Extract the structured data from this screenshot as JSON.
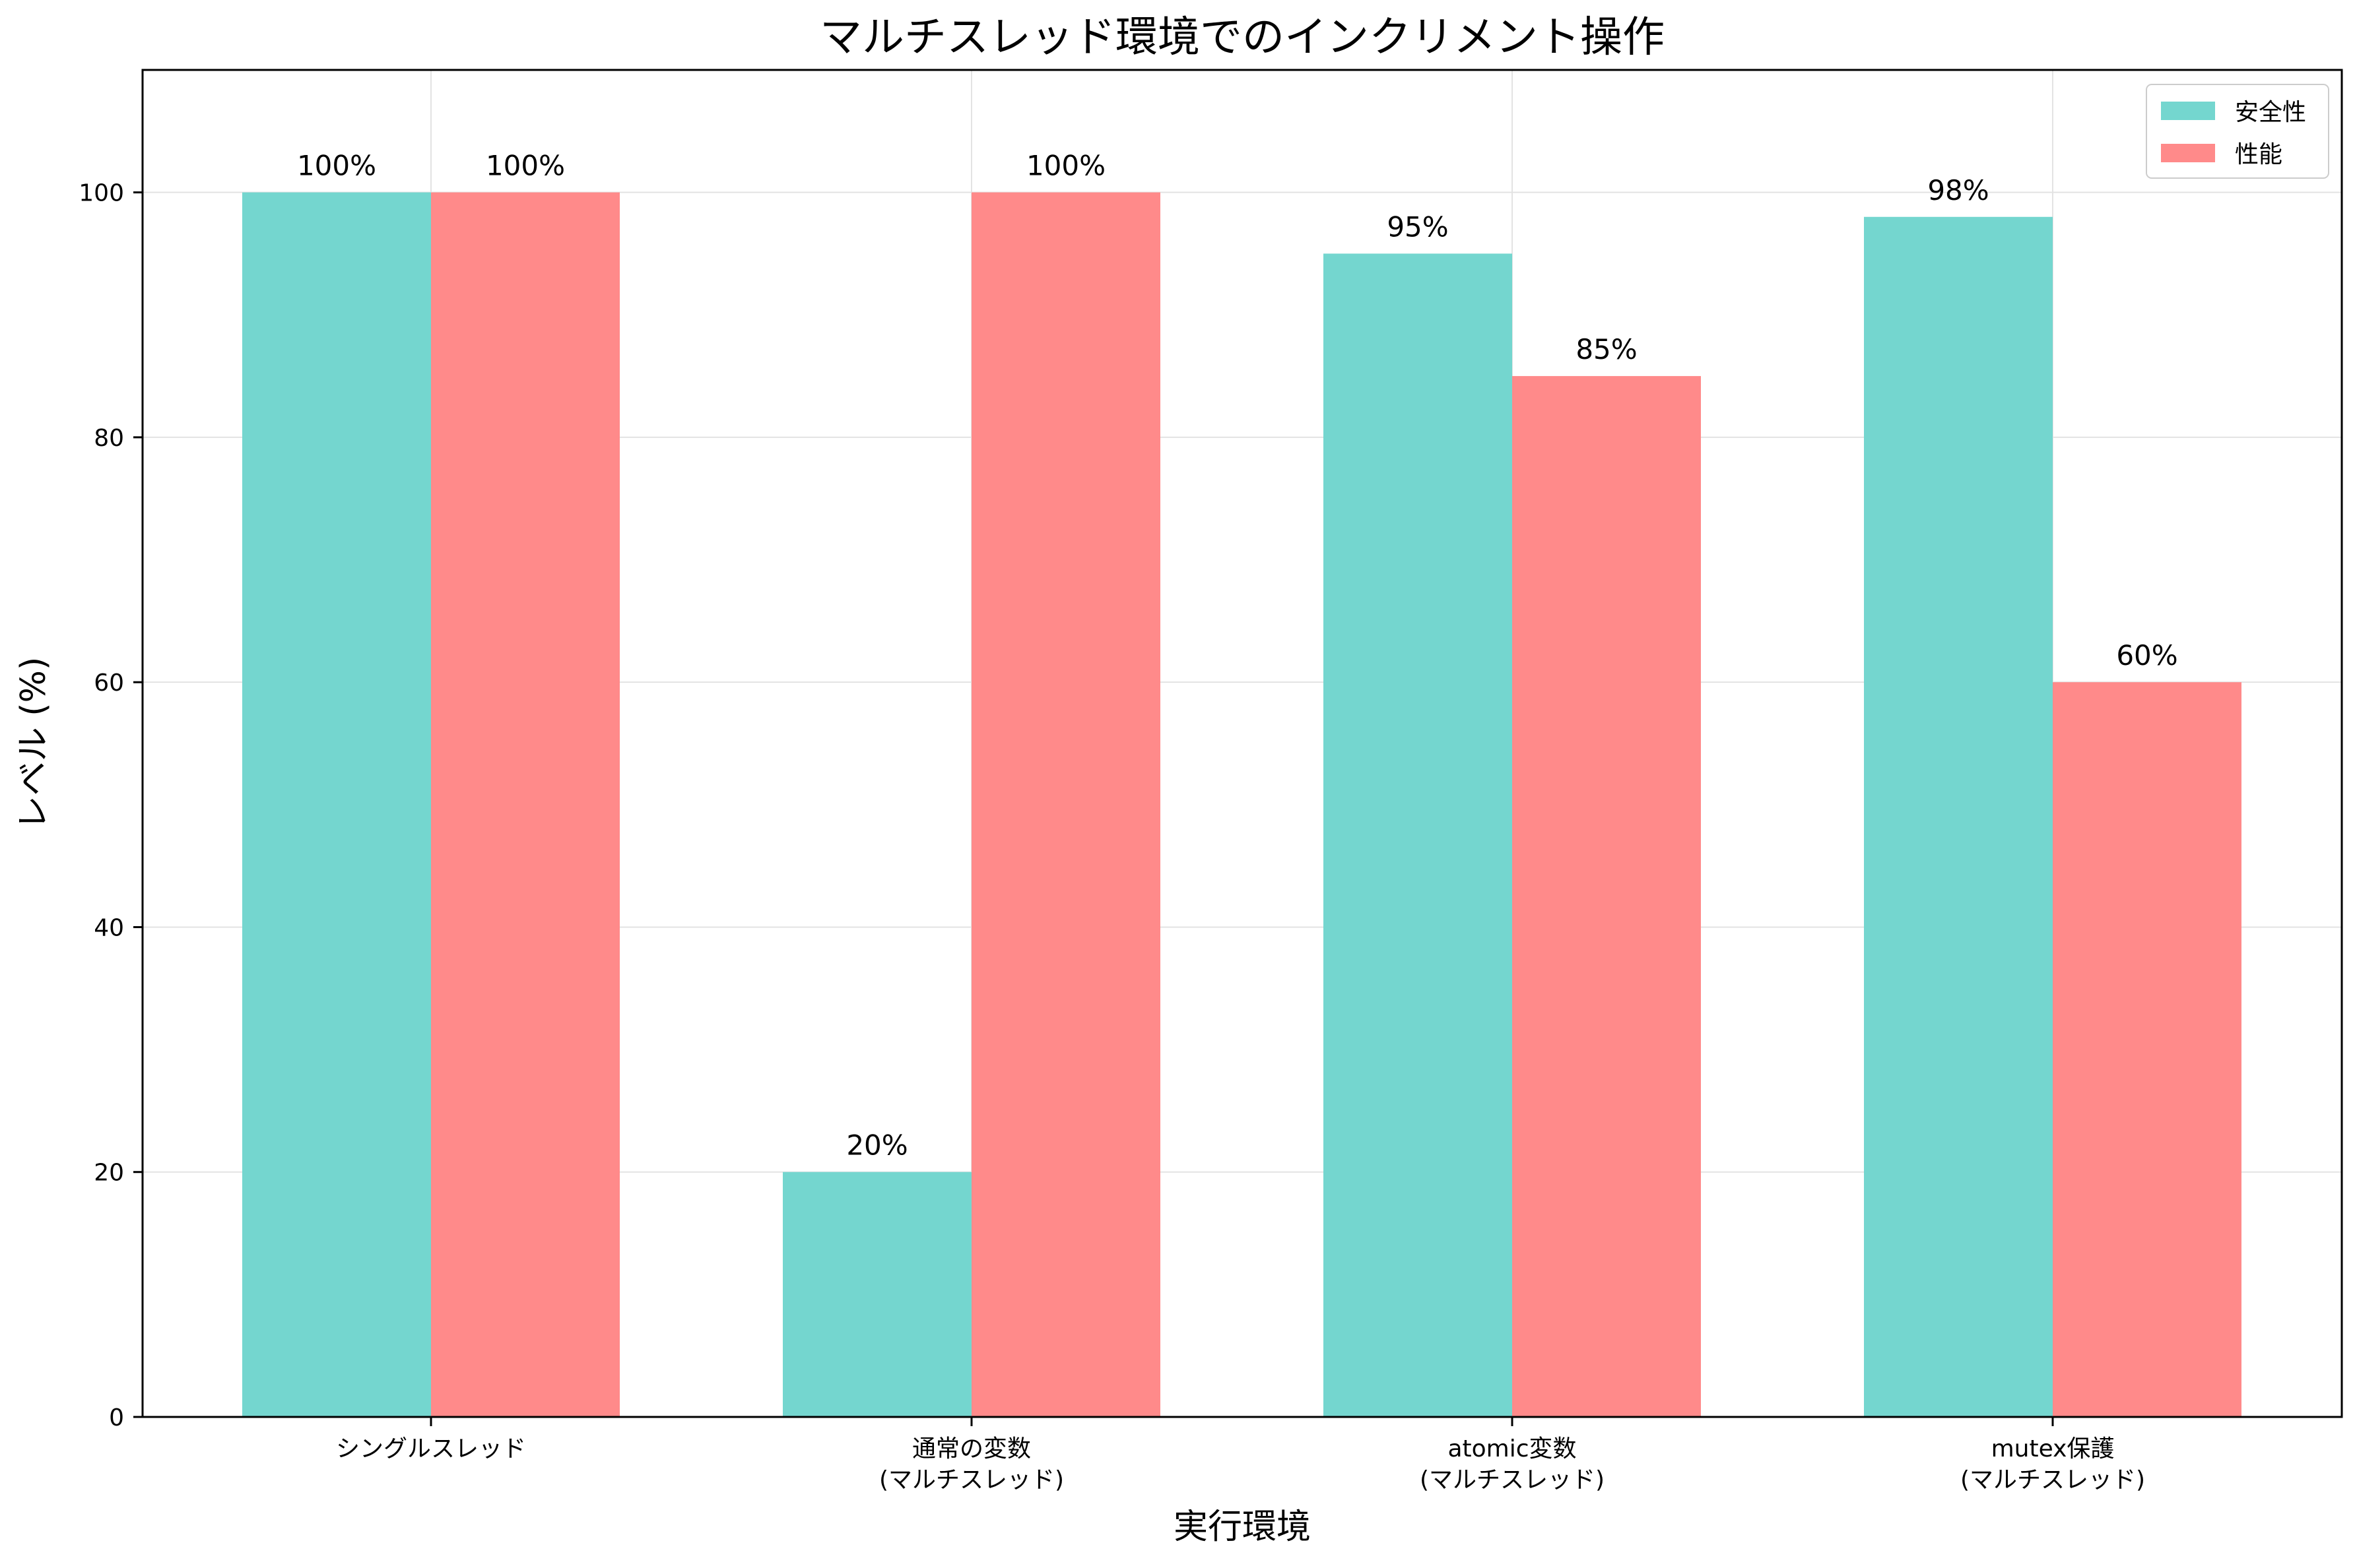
{
  "chart_data": {
    "type": "bar",
    "title": "マルチスレッド環境でのインクリメント操作",
    "xlabel": "実行環境",
    "ylabel": "レベル (%)",
    "categories": [
      [
        "シングルスレッド"
      ],
      [
        "通常の変数",
        "(マルチスレッド)"
      ],
      [
        "atomic変数",
        "(マルチスレッド)"
      ],
      [
        "mutex保護",
        "(マルチスレッド)"
      ]
    ],
    "series": [
      {
        "name": "安全性",
        "color": "#74d6cf",
        "values": [
          100,
          20,
          95,
          98
        ]
      },
      {
        "name": "性能",
        "color": "#ff8a8a",
        "values": [
          100,
          100,
          85,
          60
        ]
      }
    ],
    "data_labels": [
      [
        "100%",
        "20%",
        "95%",
        "98%"
      ],
      [
        "100%",
        "100%",
        "85%",
        "60%"
      ]
    ],
    "ylim": [
      0,
      110
    ],
    "yticks": [
      0,
      20,
      40,
      60,
      80,
      100
    ],
    "grid": true,
    "legend_position": "top-right"
  }
}
